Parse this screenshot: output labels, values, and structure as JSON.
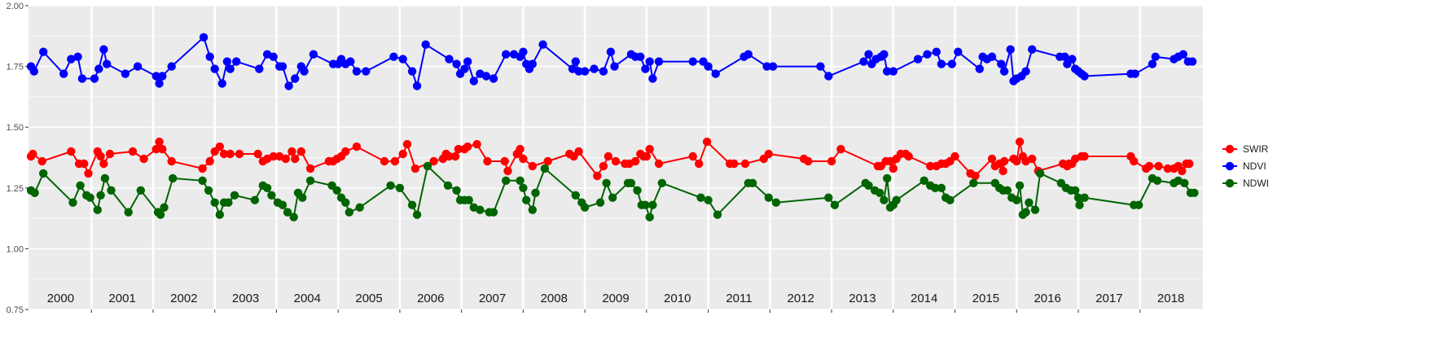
{
  "chart_data": {
    "type": "line",
    "title": "",
    "xlabel": "",
    "ylabel": "",
    "ylim": [
      0.75,
      2.0
    ],
    "xlim": [
      1999.98,
      2019.02
    ],
    "grid": true,
    "yticks": [
      "0.75",
      "1.00",
      "1.25",
      "1.50",
      "1.75",
      "2.00"
    ],
    "ytick_values": [
      0.75,
      1.0,
      1.25,
      1.5,
      1.75,
      2.0
    ],
    "years": [
      "2000",
      "2001",
      "2002",
      "2003",
      "2004",
      "2005",
      "2006",
      "2007",
      "2008",
      "2009",
      "2010",
      "2011",
      "2012",
      "2013",
      "2014",
      "2015",
      "2016",
      "2017",
      "2018"
    ],
    "legend_position": "right",
    "colors": {
      "panel": "#ebebeb",
      "grid": "#ffffff",
      "SWIR": "#ff0000",
      "NDVI": "#0000ff",
      "NDWI": "#006400"
    },
    "series": [
      {
        "name": "SWIR",
        "color": "#ff0000",
        "x": [
          2000.02,
          2000.05,
          2000.2,
          2000.67,
          2000.8,
          2000.92,
          2000.95,
          2001.1,
          2001.18,
          2001.3,
          2001.45,
          2001.67,
          2002.0,
          2002.05,
          2002.1,
          2002.28,
          2002.8,
          2002.9,
          2003.0,
          2003.1,
          2003.2,
          2003.28,
          2003.5,
          2003.7,
          2003.8,
          2003.9,
          2004.0,
          2004.07,
          2004.15,
          2004.25,
          2004.35,
          2004.4,
          2004.5,
          2004.75,
          2004.82,
          2004.9,
          2004.95,
          2005.05,
          2005.2,
          2005.67,
          2005.88,
          2006.05,
          2006.1,
          2006.3,
          2006.52,
          2006.62,
          2006.67,
          2006.75,
          2006.8,
          2006.85,
          2006.9,
          2006.95,
          2007.05,
          2007.12,
          2007.2,
          2007.45,
          2007.67,
          2007.78,
          2007.85,
          2007.88,
          2007.95,
          2008.0,
          2008.3,
          2009.0,
          2009.05,
          2009.12,
          2009.4,
          2009.47,
          2009.6,
          2009.7,
          2009.75,
          2009.8,
          2009.85,
          2009.9,
          2009.95,
          2010.0,
          2010.15,
          2010.55,
          2010.57,
          2011.0,
          2011.05,
          2011.1,
          2011.48,
          2011.55,
          2011.9,
          2011.97,
          2012.0,
          2012.55,
          2012.6,
          2012.95,
          2013.0,
          2013.1,
          2013.15,
          2013.2,
          2013.28,
          2013.35,
          2013.4,
          2013.45,
          2013.5,
          2013.95,
          2014.05,
          2014.1,
          2014.15,
          2014.2,
          2014.25,
          2014.3,
          2014.45,
          2014.55,
          2014.6,
          2014.7,
          2014.8,
          2014.88,
          2014.9,
          2014.95,
          2015.0,
          2015.05,
          2015.55,
          2015.57,
          2015.62,
          2015.67,
          2015.72,
          2015.78,
          2015.82,
          2015.88,
          2015.9,
          2016.0,
          2016.05,
          2016.1,
          2016.15,
          2016.25,
          2016.3,
          2016.6,
          2016.65,
          2016.7,
          2016.75,
          2016.8,
          2016.85,
          2017.1,
          2017.1,
          2017.7,
          2017.75,
          2017.8,
          2017.9,
          2017.95,
          2018.0,
          2018.05,
          2018.1,
          2018.15,
          2018.2,
          2018.25,
          2018.3,
          2018.35,
          2018.42
        ]
      }
    ]
  }
}
